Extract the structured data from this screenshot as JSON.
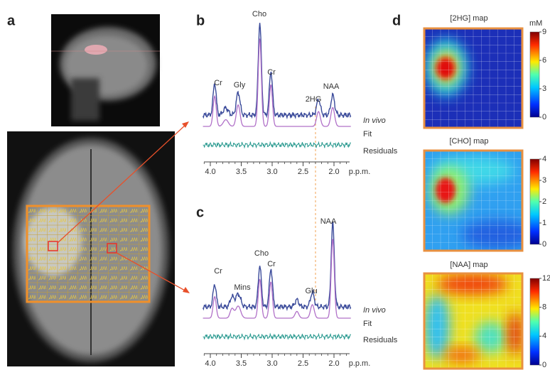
{
  "panels": {
    "a": {
      "label": "a"
    },
    "b": {
      "label": "b",
      "peaks": [
        "Cho",
        "Cr",
        "Gly",
        "Cr",
        "2HG",
        "NAA"
      ],
      "traces": [
        "In vivo",
        "Fit",
        "Residuals"
      ],
      "axis": {
        "ticks": [
          "4.0",
          "3.5",
          "3.0",
          "2.5",
          "2.0"
        ],
        "unit": "p.p.m."
      }
    },
    "c": {
      "label": "c",
      "peaks": [
        "NAA",
        "Cho",
        "Cr",
        "Cr",
        "Mins",
        "Glu"
      ],
      "traces": [
        "In vivo",
        "Fit",
        "Residuals"
      ],
      "axis": {
        "ticks": [
          "4.0",
          "3.5",
          "3.0",
          "2.5",
          "2.0"
        ],
        "unit": "p.p.m."
      }
    },
    "d": {
      "label": "d",
      "unit": "mM",
      "maps": [
        {
          "title": "[2HG] map",
          "ticks": [
            "9",
            "6",
            "3",
            "0"
          ]
        },
        {
          "title": "[CHO] map",
          "ticks": [
            "4",
            "3",
            "2",
            "1",
            "0"
          ]
        },
        {
          "title": "[NAA] map",
          "ticks": [
            "12",
            "8",
            "4",
            "0"
          ]
        }
      ]
    }
  }
}
